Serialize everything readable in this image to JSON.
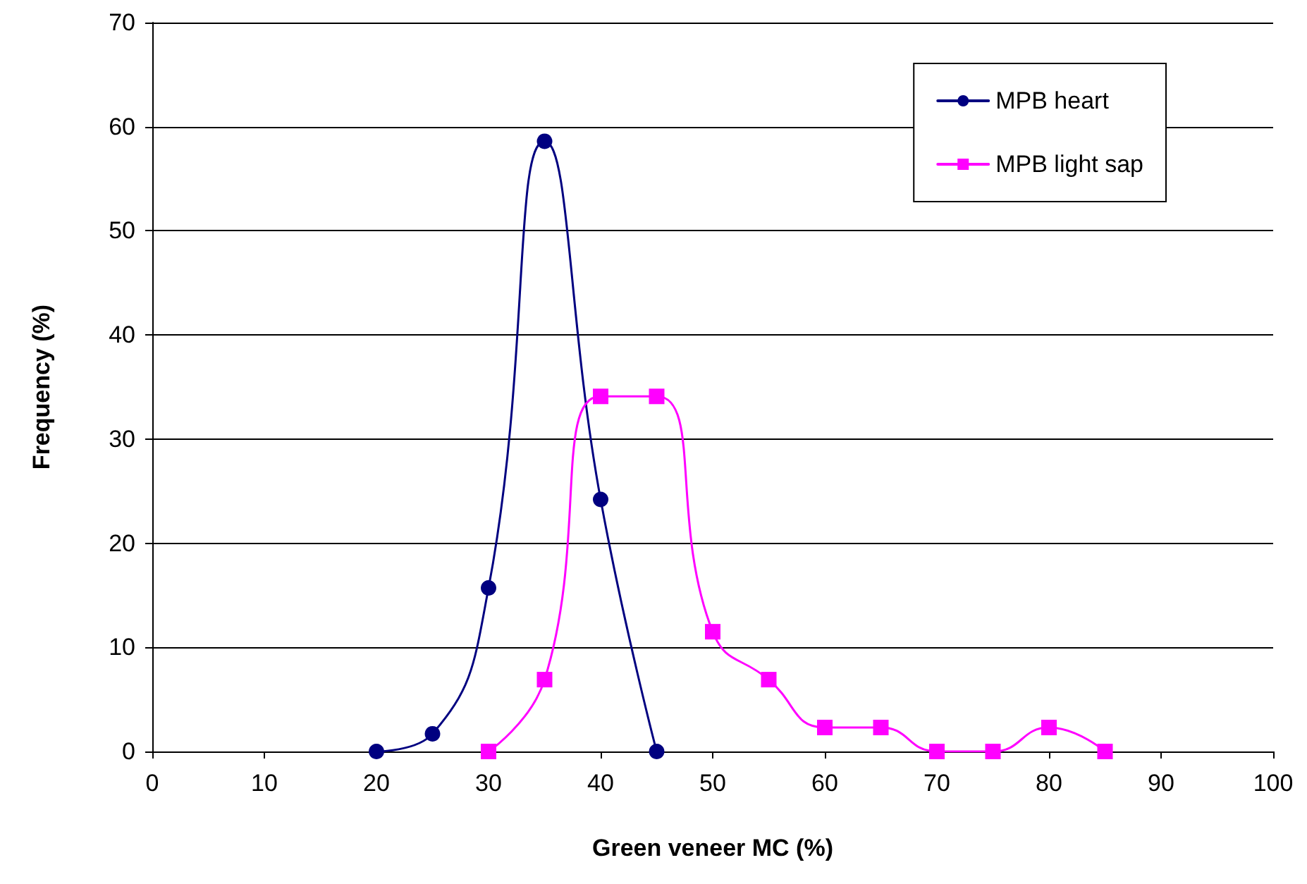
{
  "chart_data": {
    "type": "line",
    "xlabel": "Green veneer MC (%)",
    "ylabel": "Frequency (%)",
    "xlim": [
      0,
      100
    ],
    "xticks": [
      0,
      10,
      20,
      30,
      40,
      50,
      60,
      70,
      80,
      90,
      100
    ],
    "ylim": [
      0,
      70
    ],
    "yticks": [
      0,
      10,
      20,
      30,
      40,
      50,
      60,
      70
    ],
    "grid": "y",
    "legend": "top right",
    "series": [
      {
        "name": "MPB heart",
        "color": "#000080",
        "marker": "circle",
        "x": [
          20,
          25,
          30,
          35,
          40,
          45
        ],
        "values": [
          0,
          1.7,
          15.7,
          58.6,
          24.2,
          0
        ]
      },
      {
        "name": "MPB light sap",
        "color": "#ff00ff",
        "marker": "square",
        "x": [
          30,
          35,
          40,
          45,
          50,
          55,
          60,
          65,
          70,
          75,
          80,
          85
        ],
        "values": [
          0,
          6.9,
          34.1,
          34.1,
          11.5,
          6.9,
          2.3,
          2.3,
          0,
          0,
          2.3,
          0
        ]
      }
    ]
  }
}
